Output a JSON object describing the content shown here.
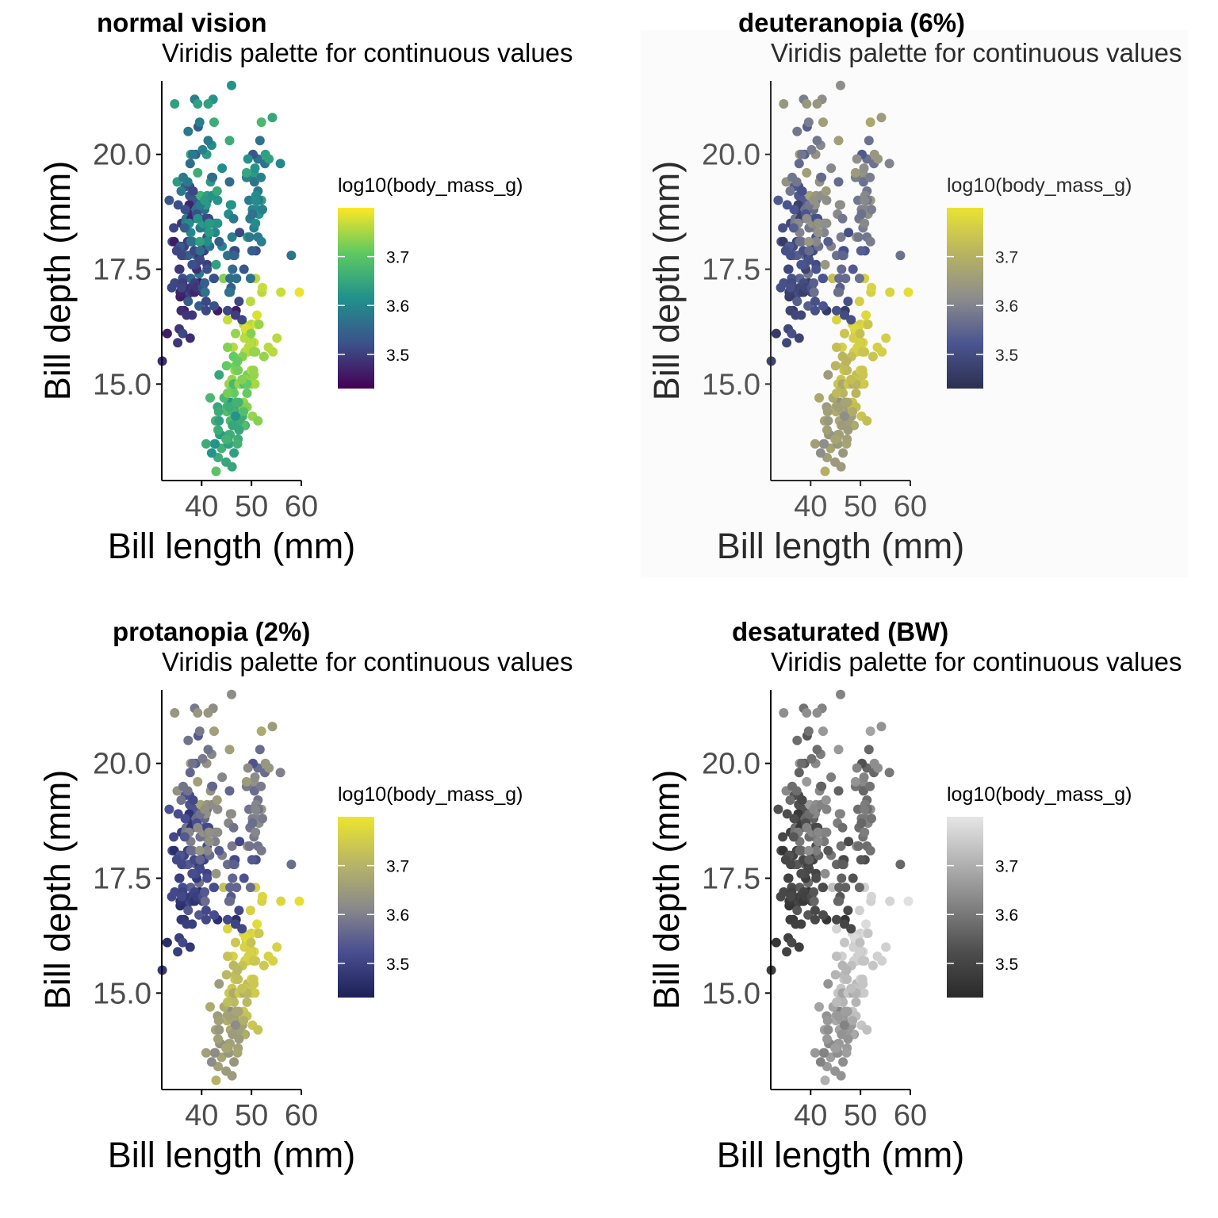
{
  "chart_data": [
    {
      "type": "scatter",
      "title": "normal vision",
      "subtitle": "Viridis palette for continuous values",
      "xlabel": "Bill length (mm)",
      "ylabel": "Bill depth (mm)",
      "xticks": [
        "40",
        "50",
        "60"
      ],
      "yticks": [
        "15.0",
        "17.5",
        "20.0"
      ],
      "xlim": [
        32,
        60
      ],
      "ylim": [
        12.9,
        21.6
      ],
      "grid": false,
      "legend": {
        "title": "log10(body_mass_g)",
        "position": "right",
        "breaks": [
          "3.7",
          "3.6",
          "3.5"
        ],
        "range": [
          3.43,
          3.8
        ]
      },
      "palette": [
        "#440154",
        "#3b528b",
        "#21918c",
        "#5ec962",
        "#fde725"
      ],
      "background": "#ffffff",
      "ink": "#000000",
      "muted": "#4d4d4d"
    },
    {
      "type": "scatter",
      "title": "deuteranopia (6%)",
      "subtitle": "Viridis palette for continuous values",
      "xlabel": "Bill length (mm)",
      "ylabel": "Bill depth (mm)",
      "xticks": [
        "40",
        "50",
        "60"
      ],
      "yticks": [
        "15.0",
        "17.5",
        "20.0"
      ],
      "xlim": [
        32,
        60
      ],
      "ylim": [
        12.9,
        21.6
      ],
      "grid": false,
      "legend": {
        "title": "log10(body_mass_g)",
        "position": "right",
        "breaks": [
          "3.7",
          "3.6",
          "3.5"
        ],
        "range": [
          3.43,
          3.8
        ]
      },
      "palette": [
        "#2c3050",
        "#4b5590",
        "#8c8c8c",
        "#b8b460",
        "#e9e333"
      ],
      "background": "#fbfbfb",
      "ink": "#2b2b2b",
      "muted": "#555555"
    },
    {
      "type": "scatter",
      "title": "protanopia (2%)",
      "subtitle": "Viridis palette for continuous values",
      "xlabel": "Bill length (mm)",
      "ylabel": "Bill depth (mm)",
      "xticks": [
        "40",
        "50",
        "60"
      ],
      "yticks": [
        "15.0",
        "17.5",
        "20.0"
      ],
      "xlim": [
        32,
        60
      ],
      "ylim": [
        12.9,
        21.6
      ],
      "grid": false,
      "legend": {
        "title": "log10(body_mass_g)",
        "position": "right",
        "breaks": [
          "3.7",
          "3.6",
          "3.5"
        ],
        "range": [
          3.43,
          3.8
        ]
      },
      "palette": [
        "#1d2158",
        "#484e90",
        "#8a8a8a",
        "#b9b764",
        "#ece52e"
      ],
      "background": "#ffffff",
      "ink": "#000000",
      "muted": "#4d4d4d"
    },
    {
      "type": "scatter",
      "title": "desaturated (BW)",
      "subtitle": "Viridis palette for continuous values",
      "xlabel": "Bill length (mm)",
      "ylabel": "Bill depth (mm)",
      "xticks": [
        "40",
        "50",
        "60"
      ],
      "yticks": [
        "15.0",
        "17.5",
        "20.0"
      ],
      "xlim": [
        32,
        60
      ],
      "ylim": [
        12.9,
        21.6
      ],
      "grid": false,
      "legend": {
        "title": "log10(body_mass_g)",
        "position": "right",
        "breaks": [
          "3.7",
          "3.6",
          "3.5"
        ],
        "range": [
          3.43,
          3.8
        ]
      },
      "palette": [
        "#2a2a2a",
        "#4d4d4d",
        "#808080",
        "#b3b3b3",
        "#e6e6e6"
      ],
      "background": "#ffffff",
      "ink": "#000000",
      "muted": "#4d4d4d"
    }
  ],
  "points": [
    [
      39.1,
      18.7,
      3.57
    ],
    [
      39.5,
      17.4,
      3.58
    ],
    [
      40.3,
      18.0,
      3.51
    ],
    [
      36.7,
      19.3,
      3.54
    ],
    [
      39.3,
      20.6,
      3.54
    ],
    [
      38.9,
      17.8,
      3.56
    ],
    [
      39.2,
      19.6,
      3.66
    ],
    [
      34.1,
      18.1,
      3.53
    ],
    [
      42.0,
      20.2,
      3.61
    ],
    [
      37.8,
      17.1,
      3.49
    ],
    [
      37.8,
      17.3,
      3.55
    ],
    [
      41.1,
      17.6,
      3.5
    ],
    [
      38.6,
      21.2,
      3.59
    ],
    [
      34.6,
      21.1,
      3.64
    ],
    [
      36.6,
      17.8,
      3.57
    ],
    [
      38.7,
      19.0,
      3.53
    ],
    [
      42.5,
      20.7,
      3.66
    ],
    [
      34.4,
      18.4,
      3.51
    ],
    [
      46.0,
      21.5,
      3.62
    ],
    [
      37.8,
      18.3,
      3.6
    ],
    [
      37.7,
      18.7,
      3.48
    ],
    [
      35.9,
      19.2,
      3.58
    ],
    [
      38.2,
      18.1,
      3.59
    ],
    [
      38.8,
      17.2,
      3.58
    ],
    [
      35.3,
      18.9,
      3.52
    ],
    [
      40.6,
      18.6,
      3.54
    ],
    [
      40.5,
      17.9,
      3.5
    ],
    [
      37.9,
      18.6,
      3.46
    ],
    [
      40.5,
      18.9,
      3.54
    ],
    [
      39.5,
      16.7,
      3.54
    ],
    [
      37.2,
      18.1,
      3.49
    ],
    [
      39.5,
      17.8,
      3.48
    ],
    [
      40.9,
      18.9,
      3.62
    ],
    [
      36.4,
      17.0,
      3.5
    ],
    [
      39.2,
      21.1,
      3.64
    ],
    [
      38.8,
      20.0,
      3.54
    ],
    [
      42.2,
      18.5,
      3.56
    ],
    [
      37.6,
      19.3,
      3.52
    ],
    [
      39.8,
      19.1,
      3.67
    ],
    [
      36.5,
      18.0,
      3.5
    ],
    [
      40.8,
      18.4,
      3.61
    ],
    [
      36.0,
      18.5,
      3.49
    ],
    [
      44.1,
      19.7,
      3.61
    ],
    [
      37.0,
      16.9,
      3.48
    ],
    [
      39.6,
      18.8,
      3.66
    ],
    [
      41.1,
      19.0,
      3.58
    ],
    [
      37.5,
      18.9,
      3.47
    ],
    [
      42.3,
      21.2,
      3.62
    ],
    [
      39.6,
      17.7,
      3.5
    ],
    [
      40.1,
      18.9,
      3.63
    ],
    [
      35.0,
      17.9,
      3.51
    ],
    [
      42.0,
      19.5,
      3.6
    ],
    [
      34.5,
      18.1,
      3.46
    ],
    [
      41.4,
      18.6,
      3.51
    ],
    [
      39.0,
      17.5,
      3.48
    ],
    [
      40.6,
      18.8,
      3.56
    ],
    [
      36.5,
      16.6,
      3.46
    ],
    [
      37.6,
      19.1,
      3.53
    ],
    [
      35.7,
      16.9,
      3.46
    ],
    [
      41.3,
      21.1,
      3.64
    ],
    [
      37.6,
      17.0,
      3.51
    ],
    [
      41.1,
      18.2,
      3.52
    ],
    [
      36.4,
      17.1,
      3.48
    ],
    [
      41.6,
      18.0,
      3.57
    ],
    [
      35.5,
      16.2,
      3.49
    ],
    [
      41.1,
      19.1,
      3.64
    ],
    [
      35.9,
      16.6,
      3.48
    ],
    [
      41.8,
      19.4,
      3.63
    ],
    [
      33.5,
      19.0,
      3.53
    ],
    [
      39.7,
      18.4,
      3.58
    ],
    [
      39.6,
      17.2,
      3.46
    ],
    [
      45.8,
      18.9,
      3.62
    ],
    [
      35.5,
      17.5,
      3.51
    ],
    [
      42.8,
      18.5,
      3.62
    ],
    [
      40.9,
      16.8,
      3.51
    ],
    [
      37.2,
      19.4,
      3.58
    ],
    [
      36.2,
      16.1,
      3.51
    ],
    [
      42.1,
      19.1,
      3.62
    ],
    [
      34.6,
      17.2,
      3.51
    ],
    [
      42.9,
      17.6,
      3.64
    ],
    [
      36.7,
      18.8,
      3.52
    ],
    [
      35.1,
      19.4,
      3.63
    ],
    [
      37.3,
      17.8,
      3.54
    ],
    [
      41.3,
      20.3,
      3.58
    ],
    [
      36.3,
      19.5,
      3.58
    ],
    [
      36.9,
      18.6,
      3.58
    ],
    [
      38.3,
      19.2,
      3.51
    ],
    [
      38.9,
      18.8,
      3.57
    ],
    [
      35.7,
      18.0,
      3.53
    ],
    [
      41.1,
      18.1,
      3.61
    ],
    [
      34.0,
      17.1,
      3.51
    ],
    [
      39.6,
      18.1,
      3.64
    ],
    [
      36.2,
      17.3,
      3.52
    ],
    [
      40.8,
      18.9,
      3.63
    ],
    [
      38.1,
      18.6,
      3.51
    ],
    [
      40.3,
      18.5,
      3.63
    ],
    [
      33.1,
      16.1,
      3.46
    ],
    [
      43.2,
      18.5,
      3.62
    ],
    [
      35.0,
      17.9,
      3.51
    ],
    [
      41.0,
      20.0,
      3.63
    ],
    [
      37.7,
      16.0,
      3.48
    ],
    [
      37.8,
      20.0,
      3.65
    ],
    [
      37.9,
      18.6,
      3.47
    ],
    [
      39.7,
      18.9,
      3.58
    ],
    [
      38.6,
      17.2,
      3.5
    ],
    [
      38.2,
      20.0,
      3.58
    ],
    [
      38.1,
      17.0,
      3.49
    ],
    [
      43.2,
      19.0,
      3.62
    ],
    [
      38.1,
      16.5,
      3.49
    ],
    [
      45.6,
      20.3,
      3.66
    ],
    [
      39.7,
      17.7,
      3.51
    ],
    [
      42.2,
      19.5,
      3.56
    ],
    [
      39.6,
      20.7,
      3.59
    ],
    [
      42.7,
      18.3,
      3.6
    ],
    [
      38.6,
      17.0,
      3.47
    ],
    [
      37.3,
      20.5,
      3.58
    ],
    [
      35.7,
      17.0,
      3.47
    ],
    [
      41.1,
      18.6,
      3.51
    ],
    [
      36.2,
      17.2,
      3.5
    ],
    [
      37.7,
      19.8,
      3.56
    ],
    [
      40.2,
      17.0,
      3.49
    ],
    [
      41.4,
      18.5,
      3.58
    ],
    [
      35.2,
      15.9,
      3.49
    ],
    [
      40.6,
      19.0,
      3.63
    ],
    [
      38.8,
      17.6,
      3.51
    ],
    [
      41.5,
      18.3,
      3.63
    ],
    [
      39.0,
      17.1,
      3.49
    ],
    [
      44.1,
      18.0,
      3.6
    ],
    [
      38.5,
      17.9,
      3.51
    ],
    [
      43.1,
      19.2,
      3.65
    ],
    [
      36.8,
      18.5,
      3.59
    ],
    [
      37.5,
      18.5,
      3.61
    ],
    [
      38.1,
      17.6,
      3.52
    ],
    [
      41.1,
      17.5,
      3.52
    ],
    [
      35.6,
      17.5,
      3.49
    ],
    [
      40.2,
      20.1,
      3.59
    ],
    [
      37.0,
      16.5,
      3.49
    ],
    [
      39.7,
      17.9,
      3.56
    ],
    [
      40.2,
      17.1,
      3.52
    ],
    [
      40.6,
      17.2,
      3.54
    ],
    [
      32.1,
      15.5,
      3.48
    ],
    [
      40.7,
      17.0,
      3.57
    ],
    [
      37.3,
      16.8,
      3.54
    ],
    [
      39.0,
      18.7,
      3.52
    ],
    [
      39.2,
      18.6,
      3.62
    ],
    [
      36.6,
      18.4,
      3.54
    ],
    [
      36.0,
      17.8,
      3.51
    ],
    [
      37.8,
      18.1,
      3.57
    ],
    [
      36.0,
      17.1,
      3.51
    ],
    [
      41.5,
      18.5,
      3.63
    ],
    [
      46.1,
      13.2,
      3.65
    ],
    [
      50.0,
      16.3,
      3.76
    ],
    [
      48.7,
      14.1,
      3.65
    ],
    [
      50.0,
      15.2,
      3.76
    ],
    [
      47.6,
      14.5,
      3.73
    ],
    [
      46.5,
      13.5,
      3.64
    ],
    [
      45.4,
      14.6,
      3.67
    ],
    [
      46.7,
      15.3,
      3.74
    ],
    [
      43.3,
      13.4,
      3.66
    ],
    [
      46.8,
      15.4,
      3.72
    ],
    [
      40.9,
      13.7,
      3.66
    ],
    [
      49.0,
      16.1,
      3.74
    ],
    [
      45.5,
      13.7,
      3.66
    ],
    [
      48.4,
      14.6,
      3.74
    ],
    [
      45.8,
      14.6,
      3.62
    ],
    [
      49.3,
      15.7,
      3.76
    ],
    [
      42.0,
      13.5,
      3.62
    ],
    [
      49.2,
      15.2,
      3.72
    ],
    [
      46.2,
      14.5,
      3.65
    ],
    [
      48.7,
      15.1,
      3.74
    ],
    [
      50.2,
      14.3,
      3.74
    ],
    [
      45.1,
      14.5,
      3.7
    ],
    [
      46.5,
      14.5,
      3.66
    ],
    [
      46.3,
      15.8,
      3.76
    ],
    [
      42.9,
      13.1,
      3.7
    ],
    [
      46.1,
      15.1,
      3.74
    ],
    [
      47.8,
      15.0,
      3.74
    ],
    [
      48.2,
      14.3,
      3.66
    ],
    [
      50.0,
      15.3,
      3.76
    ],
    [
      47.3,
      15.3,
      3.72
    ],
    [
      42.8,
      14.2,
      3.67
    ],
    [
      45.1,
      14.5,
      3.67
    ],
    [
      59.6,
      17.0,
      3.79
    ],
    [
      49.1,
      14.8,
      3.71
    ],
    [
      48.4,
      16.3,
      3.76
    ],
    [
      42.6,
      13.7,
      3.65
    ],
    [
      44.4,
      17.3,
      3.73
    ],
    [
      44.0,
      13.6,
      3.67
    ],
    [
      48.7,
      15.7,
      3.76
    ],
    [
      42.7,
      13.7,
      3.62
    ],
    [
      49.6,
      16.0,
      3.76
    ],
    [
      45.3,
      13.7,
      3.64
    ],
    [
      49.6,
      15.0,
      3.76
    ],
    [
      50.5,
      15.9,
      3.73
    ],
    [
      43.6,
      13.9,
      3.67
    ],
    [
      45.5,
      13.9,
      3.65
    ],
    [
      50.5,
      15.9,
      3.77
    ],
    [
      44.9,
      13.3,
      3.65
    ],
    [
      45.2,
      15.8,
      3.73
    ],
    [
      46.6,
      14.2,
      3.66
    ],
    [
      48.5,
      14.1,
      3.69
    ],
    [
      45.1,
      14.4,
      3.69
    ],
    [
      50.1,
      15.0,
      3.73
    ],
    [
      46.5,
      14.4,
      3.65
    ],
    [
      45.0,
      15.4,
      3.71
    ],
    [
      43.8,
      13.9,
      3.63
    ],
    [
      45.5,
      15.0,
      3.74
    ],
    [
      43.2,
      14.5,
      3.65
    ],
    [
      50.4,
      15.3,
      3.74
    ],
    [
      45.3,
      13.8,
      3.67
    ],
    [
      46.2,
      14.9,
      3.72
    ],
    [
      45.7,
      13.9,
      3.66
    ],
    [
      54.3,
      15.7,
      3.76
    ],
    [
      45.8,
      14.2,
      3.68
    ],
    [
      49.8,
      16.8,
      3.76
    ],
    [
      46.2,
      14.4,
      3.67
    ],
    [
      49.5,
      16.2,
      3.77
    ],
    [
      43.5,
      14.2,
      3.64
    ],
    [
      50.7,
      15.0,
      3.75
    ],
    [
      47.7,
      15.0,
      3.65
    ],
    [
      46.4,
      15.6,
      3.71
    ],
    [
      48.2,
      15.6,
      3.73
    ],
    [
      46.5,
      14.8,
      3.71
    ],
    [
      46.4,
      15.0,
      3.68
    ],
    [
      48.6,
      16.0,
      3.76
    ],
    [
      47.5,
      14.2,
      3.66
    ],
    [
      51.1,
      16.3,
      3.78
    ],
    [
      45.2,
      13.8,
      3.66
    ],
    [
      45.2,
      16.4,
      3.77
    ],
    [
      49.1,
      14.5,
      3.73
    ],
    [
      52.5,
      15.6,
      3.74
    ],
    [
      47.4,
      14.6,
      3.67
    ],
    [
      50.0,
      15.9,
      3.74
    ],
    [
      44.9,
      13.8,
      3.67
    ],
    [
      50.8,
      17.3,
      3.76
    ],
    [
      43.4,
      14.4,
      3.66
    ],
    [
      51.3,
      14.2,
      3.73
    ],
    [
      47.5,
      14.0,
      3.65
    ],
    [
      52.1,
      17.0,
      3.76
    ],
    [
      47.5,
      15.0,
      3.74
    ],
    [
      52.2,
      17.1,
      3.77
    ],
    [
      45.5,
      14.5,
      3.66
    ],
    [
      49.5,
      16.1,
      3.76
    ],
    [
      44.5,
      14.7,
      3.68
    ],
    [
      50.8,
      15.7,
      3.74
    ],
    [
      49.4,
      15.8,
      3.76
    ],
    [
      46.9,
      14.6,
      3.67
    ],
    [
      48.4,
      14.4,
      3.69
    ],
    [
      51.1,
      16.5,
      3.78
    ],
    [
      48.5,
      15.0,
      3.69
    ],
    [
      55.9,
      17.0,
      3.77
    ],
    [
      47.2,
      15.5,
      3.71
    ],
    [
      49.1,
      15.0,
      3.71
    ],
    [
      47.3,
      13.8,
      3.66
    ],
    [
      46.8,
      16.1,
      3.74
    ],
    [
      41.7,
      14.7,
      3.68
    ],
    [
      53.4,
      15.8,
      3.76
    ],
    [
      43.3,
      14.0,
      3.66
    ],
    [
      48.1,
      15.1,
      3.73
    ],
    [
      50.5,
      15.2,
      3.74
    ],
    [
      49.8,
      15.9,
      3.76
    ],
    [
      43.5,
      15.2,
      3.65
    ],
    [
      51.5,
      16.3,
      3.74
    ],
    [
      46.2,
      14.1,
      3.65
    ],
    [
      55.1,
      16.0,
      3.76
    ],
    [
      48.8,
      16.2,
      3.78
    ],
    [
      47.2,
      13.7,
      3.67
    ],
    [
      46.8,
      14.3,
      3.62
    ],
    [
      50.4,
      15.7,
      3.74
    ],
    [
      45.2,
      14.8,
      3.72
    ],
    [
      49.9,
      16.1,
      3.73
    ],
    [
      46.5,
      17.9,
      3.56
    ],
    [
      50.0,
      19.5,
      3.59
    ],
    [
      51.3,
      19.2,
      3.58
    ],
    [
      45.4,
      18.7,
      3.61
    ],
    [
      52.7,
      19.8,
      3.57
    ],
    [
      45.2,
      17.8,
      3.57
    ],
    [
      46.1,
      18.2,
      3.59
    ],
    [
      51.3,
      18.2,
      3.58
    ],
    [
      46.0,
      18.9,
      3.62
    ],
    [
      51.3,
      19.9,
      3.57
    ],
    [
      46.6,
      17.8,
      3.56
    ],
    [
      51.7,
      20.3,
      3.57
    ],
    [
      47.0,
      17.3,
      3.56
    ],
    [
      52.0,
      18.1,
      3.59
    ],
    [
      45.9,
      17.1,
      3.54
    ],
    [
      50.5,
      19.6,
      3.63
    ],
    [
      50.3,
      20.0,
      3.53
    ],
    [
      58.0,
      17.8,
      3.57
    ],
    [
      46.4,
      18.6,
      3.58
    ],
    [
      49.2,
      18.2,
      3.64
    ],
    [
      42.4,
      17.3,
      3.57
    ],
    [
      48.5,
      17.5,
      3.53
    ],
    [
      43.2,
      16.6,
      3.46
    ],
    [
      50.6,
      19.4,
      3.57
    ],
    [
      46.7,
      17.9,
      3.51
    ],
    [
      52.0,
      19.0,
      3.64
    ],
    [
      50.5,
      18.4,
      3.59
    ],
    [
      49.5,
      19.0,
      3.58
    ],
    [
      46.4,
      17.8,
      3.55
    ],
    [
      52.8,
      20.0,
      3.64
    ],
    [
      40.9,
      16.6,
      3.51
    ],
    [
      54.2,
      20.8,
      3.65
    ],
    [
      42.5,
      16.7,
      3.52
    ],
    [
      51.0,
      18.8,
      3.61
    ],
    [
      49.7,
      18.6,
      3.58
    ],
    [
      47.5,
      16.8,
      3.51
    ],
    [
      47.6,
      18.3,
      3.51
    ],
    [
      52.0,
      20.7,
      3.68
    ],
    [
      46.9,
      16.6,
      3.46
    ],
    [
      53.5,
      19.9,
      3.64
    ],
    [
      49.0,
      19.5,
      3.59
    ],
    [
      46.2,
      17.5,
      3.56
    ],
    [
      50.9,
      19.1,
      3.61
    ],
    [
      45.5,
      17.0,
      3.55
    ],
    [
      50.9,
      17.9,
      3.52
    ],
    [
      50.8,
      18.5,
      3.61
    ],
    [
      50.1,
      17.9,
      3.54
    ],
    [
      49.0,
      19.6,
      3.65
    ],
    [
      51.5,
      18.7,
      3.62
    ],
    [
      49.8,
      17.3,
      3.57
    ],
    [
      48.1,
      16.4,
      3.51
    ],
    [
      51.4,
      19.0,
      3.58
    ],
    [
      45.7,
      17.3,
      3.56
    ],
    [
      50.7,
      19.7,
      3.62
    ],
    [
      42.5,
      17.3,
      3.52
    ],
    [
      52.2,
      18.8,
      3.59
    ],
    [
      45.2,
      16.6,
      3.51
    ],
    [
      49.3,
      19.9,
      3.62
    ],
    [
      50.2,
      18.8,
      3.6
    ],
    [
      45.6,
      19.4,
      3.56
    ],
    [
      51.9,
      19.5,
      3.59
    ],
    [
      46.8,
      16.5,
      3.5
    ],
    [
      45.7,
      17.0,
      3.57
    ],
    [
      55.8,
      19.8,
      3.6
    ],
    [
      43.5,
      18.1,
      3.54
    ],
    [
      49.6,
      18.2,
      3.58
    ],
    [
      50.8,
      19.0,
      3.61
    ],
    [
      50.2,
      18.7,
      3.57
    ]
  ]
}
